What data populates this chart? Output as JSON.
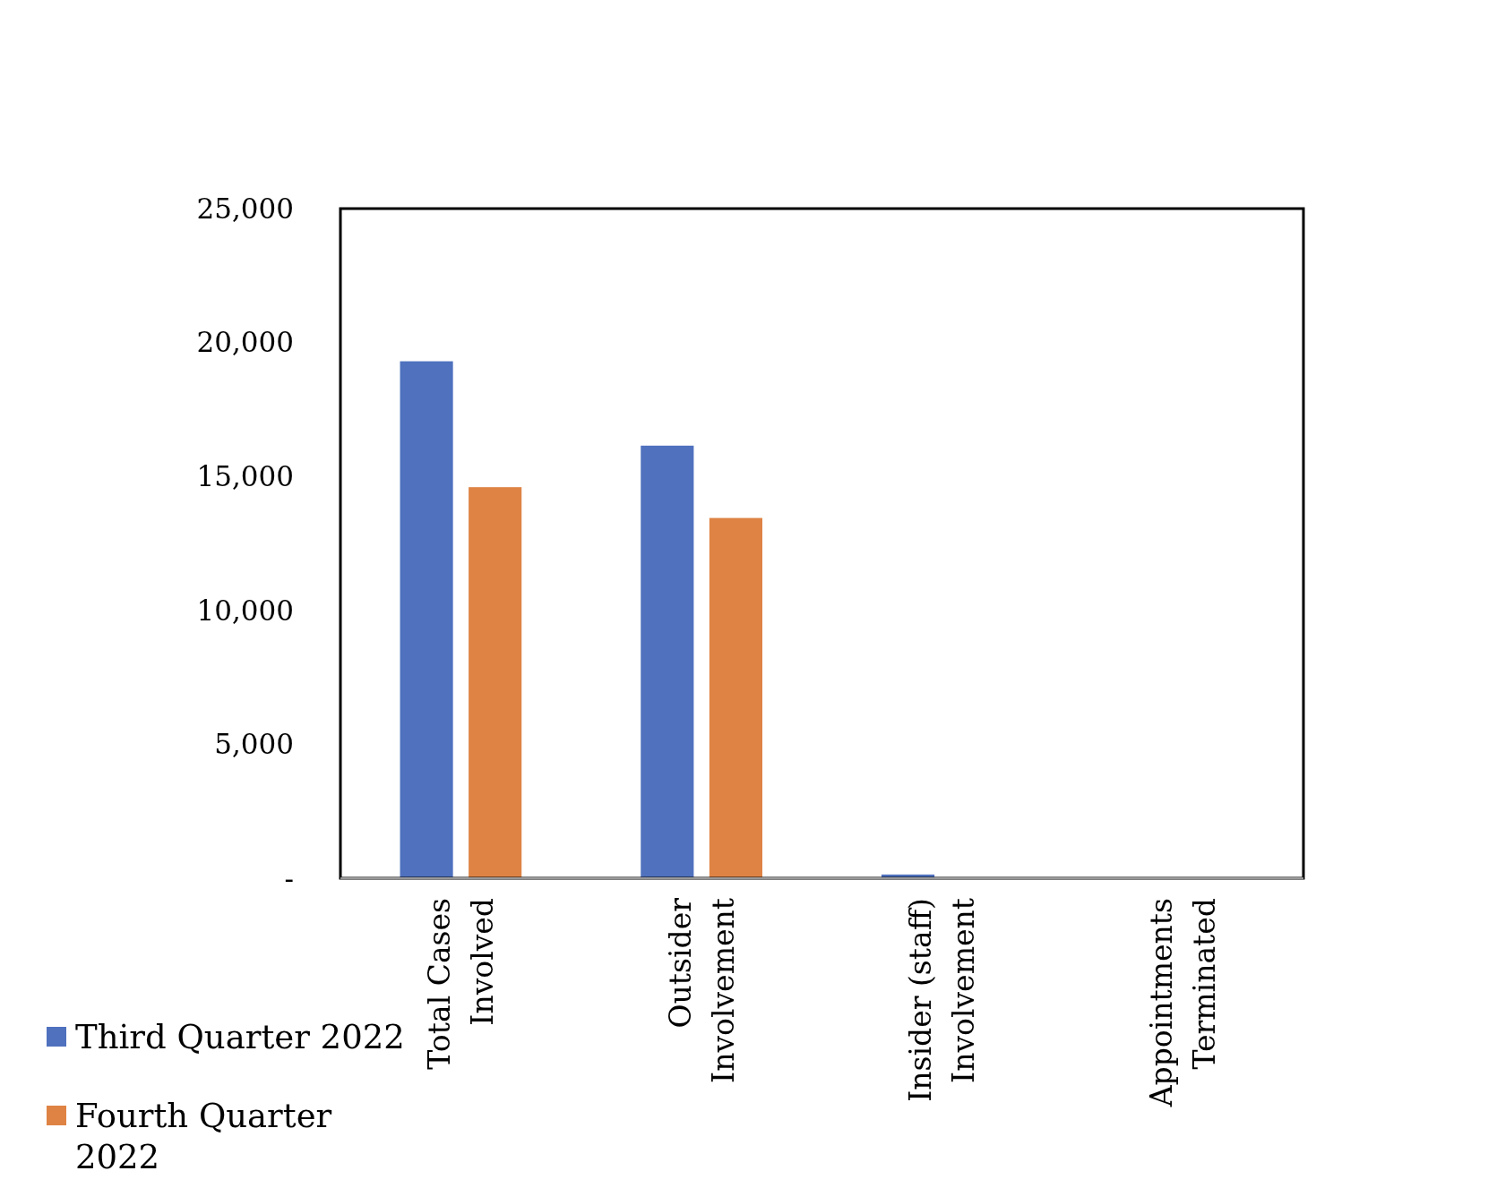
{
  "chart_data": {
    "type": "bar",
    "categories": [
      "Total Cases Involved",
      "Outsider Involvement",
      "Insider (staff) Involvement",
      "Appointments Terminated"
    ],
    "series": [
      {
        "name": "Third Quarter 2022",
        "color": "#4f71be",
        "values": [
          19300,
          16150,
          140,
          0
        ]
      },
      {
        "name": "Fourth Quarter 2022",
        "color": "#de8344",
        "values": [
          14600,
          13450,
          0,
          0
        ]
      }
    ],
    "ylim": [
      0,
      25000
    ],
    "yticks": [
      {
        "value": 0,
        "label": "-"
      },
      {
        "value": 5000,
        "label": "5,000"
      },
      {
        "value": 10000,
        "label": "10,000"
      },
      {
        "value": 15000,
        "label": "15,000"
      },
      {
        "value": 20000,
        "label": "20,000"
      },
      {
        "value": 25000,
        "label": "25,000"
      }
    ],
    "grid": false,
    "legend": "bottom left"
  }
}
